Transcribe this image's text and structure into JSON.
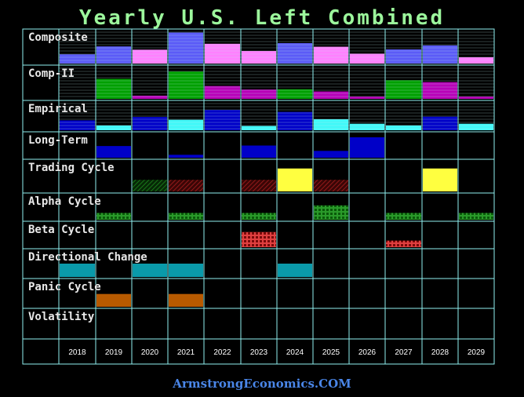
{
  "title": "Yearly U.S. Left Combined",
  "footer": "ArmstrongEconomics.COM",
  "chart_data": {
    "type": "bar",
    "categories": [
      "2018",
      "2019",
      "2020",
      "2021",
      "2022",
      "2023",
      "2024",
      "2025",
      "2026",
      "2027",
      "2028",
      "2029"
    ],
    "rows": [
      {
        "name": "Composite",
        "kind": "bar",
        "ylim": [
          0,
          1
        ],
        "lines": true,
        "values": [
          0.28,
          0.52,
          0.42,
          0.94,
          0.6,
          0.38,
          0.62,
          0.51,
          0.3,
          0.43,
          0.55,
          0.19
        ],
        "colors": [
          "#5b5bf7",
          "#5b5bf7",
          "#ff80ff",
          "#5b5bf7",
          "#ff80ff",
          "#ff80ff",
          "#5b5bf7",
          "#ff80ff",
          "#ff80ff",
          "#5b5bf7",
          "#5b5bf7",
          "#ff80ff"
        ]
      },
      {
        "name": "Comp-II",
        "kind": "bar",
        "ylim": [
          0,
          1
        ],
        "lines": true,
        "values": [
          0,
          0.62,
          0.1,
          0.85,
          0.4,
          0.29,
          0.3,
          0.23,
          0.07,
          0.58,
          0.52,
          0.07
        ],
        "colors": [
          "#b800b8",
          "#00a000",
          "#b800b8",
          "#00a000",
          "#b800b8",
          "#b800b8",
          "#00a000",
          "#b800b8",
          "#b800b8",
          "#00a000",
          "#b800b8",
          "#b800b8"
        ]
      },
      {
        "name": "Empirical",
        "kind": "bar",
        "ylim": [
          0,
          1
        ],
        "lines": true,
        "values": [
          0.35,
          0.17,
          0.47,
          0.37,
          0.72,
          0.15,
          0.65,
          0.39,
          0.23,
          0.17,
          0.48,
          0.23
        ],
        "colors": [
          "#0000c8",
          "#40f8f8",
          "#0000c8",
          "#40f8f8",
          "#0000c8",
          "#40f8f8",
          "#0000c8",
          "#40f8f8",
          "#40f8f8",
          "#40f8f8",
          "#0000c8",
          "#40f8f8"
        ]
      },
      {
        "name": "Long-Term",
        "kind": "bar",
        "ylim": [
          0,
          1
        ],
        "values": [
          0,
          0.48,
          0,
          0.12,
          0,
          0.5,
          0,
          0.28,
          0.84,
          0,
          0,
          0
        ],
        "colors": [
          "#0000c8",
          "#0000c8",
          "#0000c8",
          "#0000c8",
          "#0000c8",
          "#0000c8",
          "#0000c8",
          "#0000c8",
          "#0000c8",
          "#0000c8",
          "#0000c8",
          "#0000c8"
        ]
      },
      {
        "name": "Trading Cycle",
        "kind": "bar",
        "ylim": [
          0,
          1
        ],
        "values": [
          0,
          0,
          0.38,
          0.38,
          0,
          0.38,
          0.75,
          0.38,
          0,
          0,
          0.75,
          0
        ],
        "colors": [
          "#ffff40",
          "#ffff40",
          "#0a3a0a",
          "#5a0a0a",
          "#ffff40",
          "#5a0a0a",
          "#ffff40",
          "#5a0a0a",
          "#ffff40",
          "#ffff40",
          "#ffff40",
          "#ffff40"
        ],
        "patterns": [
          "",
          "",
          "hatch-green",
          "hatch-red",
          "",
          "hatch-red",
          "",
          "hatch-red",
          "",
          "",
          "",
          ""
        ]
      },
      {
        "name": "Alpha Cycle",
        "kind": "bar",
        "ylim": [
          0,
          1
        ],
        "values": [
          0,
          0.27,
          0,
          0.27,
          0,
          0.27,
          0,
          0.57,
          0,
          0.27,
          0,
          0.27
        ],
        "colors": [
          "#0a5a0a",
          "#0a5a0a",
          "#0a5a0a",
          "#0a5a0a",
          "#0a5a0a",
          "#0a5a0a",
          "#0a5a0a",
          "#0a5a0a",
          "#0a5a0a",
          "#0a5a0a",
          "#0a5a0a",
          "#0a5a0a"
        ],
        "patterns": [
          "",
          "grid-green",
          "",
          "grid-green",
          "",
          "grid-green",
          "",
          "grid-green",
          "",
          "grid-green",
          "",
          "grid-green"
        ]
      },
      {
        "name": "Beta Cycle",
        "kind": "bar",
        "ylim": [
          0,
          1
        ],
        "values": [
          0,
          0,
          0,
          0,
          0,
          0.62,
          0,
          0,
          0,
          0.27,
          0,
          0
        ],
        "colors": [
          "#7a0a0a",
          "#7a0a0a",
          "#7a0a0a",
          "#7a0a0a",
          "#7a0a0a",
          "#7a0a0a",
          "#7a0a0a",
          "#7a0a0a",
          "#7a0a0a",
          "#7a0a0a",
          "#7a0a0a",
          "#7a0a0a"
        ],
        "patterns": [
          "",
          "",
          "",
          "",
          "",
          "grid-red",
          "",
          "",
          "",
          "grid-red",
          "",
          ""
        ]
      },
      {
        "name": "Directional Change",
        "kind": "bar",
        "ylim": [
          0,
          1
        ],
        "values": [
          0.5,
          0,
          0.5,
          0.5,
          0,
          0,
          0.5,
          0,
          0,
          0,
          0,
          0
        ],
        "colors": [
          "#0a9aaa",
          "#0a9aaa",
          "#0a9aaa",
          "#0a9aaa",
          "#0a9aaa",
          "#0a9aaa",
          "#0a9aaa",
          "#0a9aaa",
          "#0a9aaa",
          "#0a9aaa",
          "#0a9aaa",
          "#0a9aaa"
        ]
      },
      {
        "name": "Panic Cycle",
        "kind": "bar",
        "ylim": [
          0,
          1
        ],
        "values": [
          0,
          0.48,
          0,
          0.48,
          0,
          0,
          0,
          0,
          0,
          0,
          0,
          0
        ],
        "colors": [
          "#b85a00",
          "#b85a00",
          "#b85a00",
          "#b85a00",
          "#b85a00",
          "#b85a00",
          "#b85a00",
          "#b85a00",
          "#b85a00",
          "#b85a00",
          "#b85a00",
          "#b85a00"
        ]
      },
      {
        "name": "Volatility",
        "kind": "bar",
        "ylim": [
          0,
          1
        ],
        "values": [
          0,
          0,
          0,
          0,
          0,
          0,
          0,
          0,
          0,
          0,
          0,
          0
        ],
        "colors": [
          "#888888",
          "#888888",
          "#888888",
          "#888888",
          "#888888",
          "#888888",
          "#888888",
          "#888888",
          "#888888",
          "#888888",
          "#888888",
          "#888888"
        ]
      }
    ],
    "grid": true,
    "background": "#000000",
    "grid_color": "#8ff0f0"
  }
}
